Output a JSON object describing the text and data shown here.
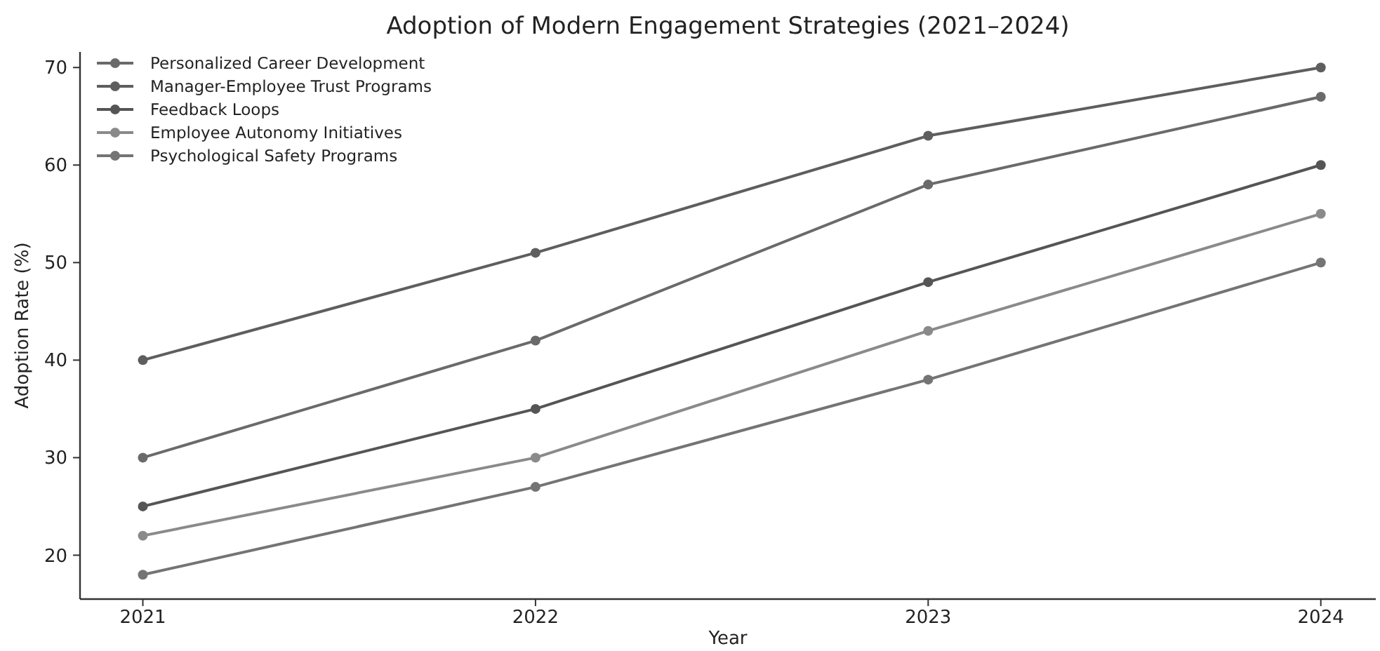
{
  "chart_data": {
    "type": "line",
    "title": "Adoption of Modern Engagement Strategies (2021–2024)",
    "xlabel": "Year",
    "ylabel": "Adoption Rate (%)",
    "x": [
      2021,
      2022,
      2023,
      2024
    ],
    "xlim": [
      2020.84,
      2024.14
    ],
    "xticks": [
      2021,
      2022,
      2023,
      2024
    ],
    "ylim": [
      15.5,
      71.6
    ],
    "yticks": [
      20,
      30,
      40,
      50,
      60,
      70
    ],
    "grid": false,
    "legend": "top left",
    "marker": "circle",
    "line_style": "solid",
    "series": [
      {
        "name": "Personalized Career Development",
        "color": "#6a6a6a",
        "values": [
          30,
          42,
          58,
          67
        ]
      },
      {
        "name": "Manager-Employee Trust Programs",
        "color": "#5e5e5e",
        "values": [
          40,
          51,
          63,
          70
        ]
      },
      {
        "name": "Feedback Loops",
        "color": "#555555",
        "values": [
          25,
          35,
          48,
          60
        ]
      },
      {
        "name": "Employee Autonomy Initiatives",
        "color": "#8a8a8a",
        "values": [
          22,
          30,
          43,
          55
        ]
      },
      {
        "name": "Psychological Safety Programs",
        "color": "#747474",
        "values": [
          18,
          27,
          38,
          50
        ]
      }
    ]
  }
}
